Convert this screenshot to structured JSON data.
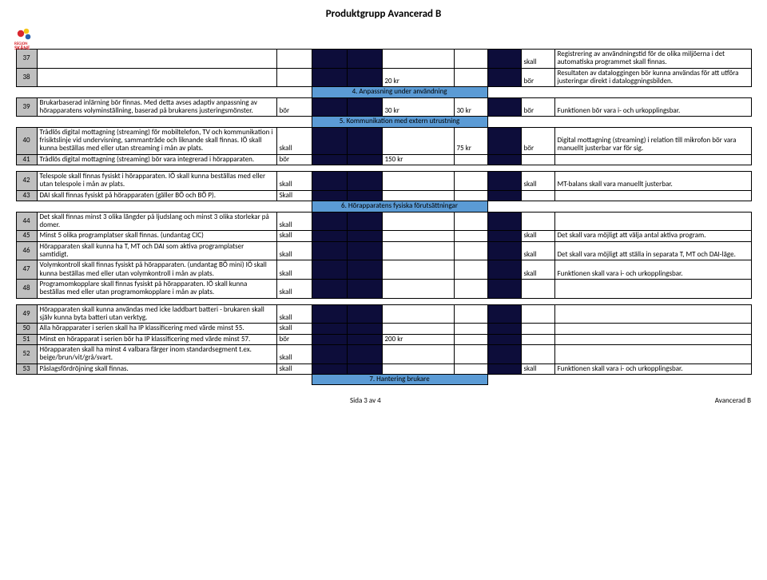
{
  "page": {
    "title": "Produktgrupp Avancerad B",
    "footer_center": "Sida 3 av 4",
    "footer_right": "Avancerad B"
  },
  "colors": {
    "row_number_bg": "#bfbfbf",
    "dark_fill": "#0d0d3a",
    "section_bg": "#5b9bd5",
    "border": "#000000"
  },
  "logo": {
    "brand_top": "REGION",
    "brand_bottom": "SKÅNE",
    "red": "#d9262e",
    "yellow": "#f5c518",
    "blue": "#2a60ad",
    "text_color": "#d8232a"
  },
  "sections": {
    "s4": "4. Anpassning under användning",
    "s5": "5. Kommunikation med extern utrustning",
    "s6": "6. Hörapparatens fysiska förutsättningar",
    "s7": "7. Hantering brukare"
  },
  "rows": [
    {
      "n": "37",
      "desc": "",
      "c3": "",
      "c4": "",
      "c5": "",
      "c6": "",
      "c7": "",
      "c8": "",
      "c9": "skall",
      "c10": "Registrering av användningstid för de olika miljöerna i det automatiska programmet skall finnas."
    },
    {
      "n": "38",
      "desc": "",
      "c3": "",
      "c4": "",
      "c5": "",
      "c6": "20 kr",
      "c7": "",
      "c8": "",
      "c9": "bör",
      "c10": "Resultaten av dataloggingen bör kunna användas för att utföra justeringar direkt i dataloggningsbilden."
    },
    {
      "section": "s4"
    },
    {
      "n": "39",
      "desc": "Brukarbaserad inlärning bör finnas. Med detta avses adaptiv anpassning av hörapparatens volyminställning, baserad på brukarens justeringsmönster.",
      "c3": "bör",
      "c4": "",
      "c5": "",
      "c6": "30 kr",
      "c7": "30 kr",
      "c8": "",
      "c9": "bör",
      "c10": "Funktionen bör vara i- och urkopplingsbar."
    },
    {
      "section": "s5"
    },
    {
      "n": "40",
      "desc": "Trådlös digital mottagning (streaming) för mobiltelefon, TV och kommunikation i frisiktslinje vid undervisning, sammanträde och liknande skall finnas. IÖ skall kunna beställas med eller utan streaming i mån av plats.",
      "c3": "skall",
      "c4": "",
      "c5": "",
      "c6": "",
      "c7": "75 kr",
      "c8": "",
      "c9": "bör",
      "c10": "Digital mottagning (streaming) i relation till mikrofon bör vara manuellt justerbar var för sig."
    },
    {
      "n": "41",
      "desc": "Trådlös digital mottagning (streaming) bör vara integrerad i hörapparaten.",
      "c3": "bör",
      "c4": "",
      "c5": "",
      "c6": "150 kr",
      "c7": "",
      "c8": "",
      "c9": "",
      "c10": ""
    },
    {
      "spacer": true
    },
    {
      "n": "42",
      "desc": "Telespole skall finnas fysiskt i hörapparaten. IÖ skall kunna beställas med eller utan telespole i mån av plats.",
      "c3": "skall",
      "c4": "",
      "c5": "",
      "c6": "",
      "c7": "",
      "c8": "",
      "c9": "skall",
      "c10": "MT-balans skall vara manuellt justerbar."
    },
    {
      "n": "43",
      "desc": "DAI skall finnas fysiskt på hörapparaten (gäller BÖ och BÖ P).",
      "c3": "Skall",
      "c4": "",
      "c5": "",
      "c6": "",
      "c7": "",
      "c8": "",
      "c9": "",
      "c10": ""
    },
    {
      "section": "s6"
    },
    {
      "n": "44",
      "desc": "Det skall finnas minst 3 olika längder på ljudslang och minst 3 olika storlekar på domer.",
      "c3": "skall",
      "c4": "",
      "c5": "",
      "c6": "",
      "c7": "",
      "c8": "",
      "c9": "",
      "c10": ""
    },
    {
      "n": "45",
      "desc": "Minst 5 olika programplatser skall finnas. (undantag CIC)",
      "c3": "skall",
      "c4": "",
      "c5": "",
      "c6": "",
      "c7": "",
      "c8": "",
      "c9": "skall",
      "c10": "Det skall vara möjligt att välja antal aktiva program."
    },
    {
      "n": "46",
      "desc": "Hörapparaten skall kunna ha T, MT och DAI som aktiva programplatser samtidigt.",
      "c3": "skall",
      "c4": "",
      "c5": "",
      "c6": "",
      "c7": "",
      "c8": "",
      "c9": "skall",
      "c10": "Det skall vara möjligt att ställa in separata T, MT och DAI-läge."
    },
    {
      "n": "47",
      "desc": "Volymkontroll skall finnas fysiskt på hörapparaten. (undantag BÖ mini) IÖ skall kunna beställas med eller utan volymkontroll i mån av plats.",
      "c3": "skall",
      "c4": "",
      "c5": "",
      "c6": "",
      "c7": "",
      "c8": "",
      "c9": "skall",
      "c10": "Funktionen skall vara i- och urkopplingsbar."
    },
    {
      "n": "48",
      "desc": "Programomkopplare skall finnas fysiskt på hörapparaten. IÖ skall kunna beställas med eller utan programomkopplare i mån av plats.",
      "c3": "skall",
      "c4": "",
      "c5": "",
      "c6": "",
      "c7": "",
      "c8": "",
      "c9": "",
      "c10": ""
    },
    {
      "spacer": true
    },
    {
      "n": "49",
      "desc": "Hörapparaten skall kunna användas med icke laddbart batteri - brukaren skall själv kunna byta batteri utan verktyg.",
      "c3": "skall",
      "c4": "",
      "c5": "",
      "c6": "",
      "c7": "",
      "c8": "",
      "c9": "",
      "c10": ""
    },
    {
      "n": "50",
      "desc": "Alla hörapparater i serien skall ha IP klassificering med värde minst 55.",
      "c3": "skall",
      "c4": "",
      "c5": "",
      "c6": "",
      "c7": "",
      "c8": "",
      "c9": "",
      "c10": ""
    },
    {
      "n": "51",
      "desc": "Minst en hörapparat i serien bör ha IP klassificering med värde minst 57.",
      "c3": "bör",
      "c4": "",
      "c5": "",
      "c6": "200 kr",
      "c7": "",
      "c8": "",
      "c9": "",
      "c10": ""
    },
    {
      "n": "52",
      "desc": "Hörapparaten skall ha minst 4 valbara färger inom standardsegment t.ex. beige/brun/vit/grå/svart.",
      "c3": "skall",
      "c4": "",
      "c5": "",
      "c6": "",
      "c7": "",
      "c8": "",
      "c9": "",
      "c10": ""
    },
    {
      "n": "53",
      "desc": "Påslagsfördröjning skall finnas.",
      "c3": "skall",
      "c4": "",
      "c5": "",
      "c6": "",
      "c7": "",
      "c8": "",
      "c9": "skall",
      "c10": "Funktionen skall vara i- och urkopplingsbar."
    },
    {
      "section": "s7"
    }
  ]
}
